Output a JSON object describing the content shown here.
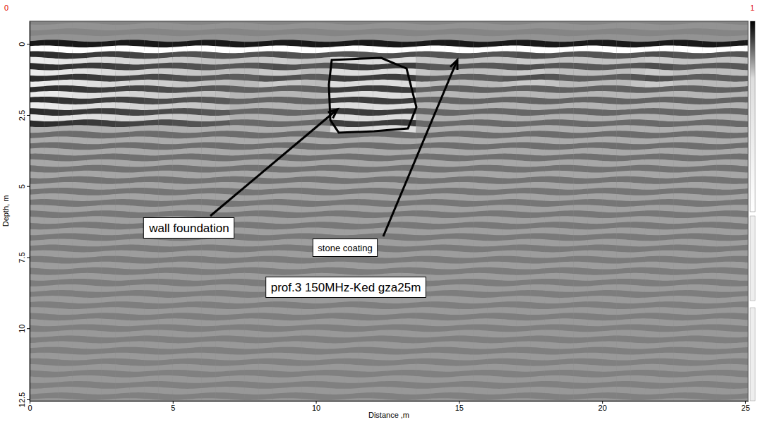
{
  "chart_data": {
    "type": "radargram",
    "x_label": "Distance ,m",
    "y_label": "Depth, m",
    "xlim": [
      0,
      25.1
    ],
    "xticks": [
      0,
      5,
      10,
      15,
      20,
      25
    ],
    "ylim": [
      -0.8,
      12.55
    ],
    "yticks": [
      0,
      2.5,
      5,
      7.5,
      10,
      12.5
    ],
    "grid": false,
    "colorbar": {
      "range": [
        0,
        1
      ],
      "ticks": [
        0,
        1
      ]
    },
    "annotations": [
      {
        "text": "wall foundation"
      },
      {
        "text": "stone coating"
      },
      {
        "text": "prof.3 150MHz-Ked gza25m"
      }
    ]
  }
}
